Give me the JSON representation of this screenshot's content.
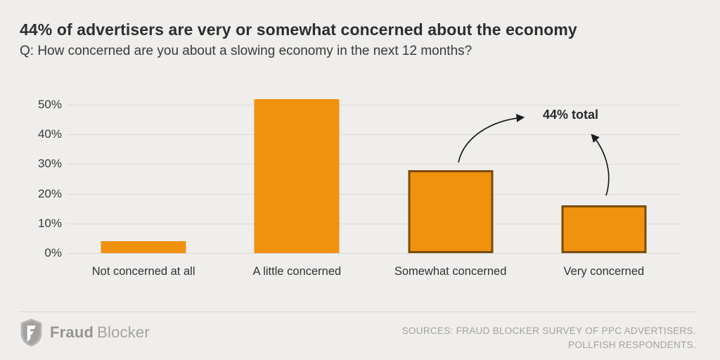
{
  "header": {
    "title": "44% of advertisers are very or somewhat concerned about the economy",
    "subtitle": "Q: How concerned are you about a slowing economy in the next 12 months?"
  },
  "chart_data": {
    "type": "bar",
    "title": "44% of advertisers are very or somewhat concerned about the economy",
    "subtitle": "Q: How concerned are you about a slowing economy in the next 12 months?",
    "categories": [
      "Not concerned at all",
      "A little concerned",
      "Somewhat concerned",
      "Very concerned"
    ],
    "values": [
      4,
      52,
      28,
      16
    ],
    "emphasized": [
      false,
      false,
      true,
      true
    ],
    "yticks": [
      "50%",
      "40%",
      "30%",
      "20%",
      "10%",
      "0%"
    ],
    "ylim": [
      0,
      50
    ],
    "grid": true,
    "legend": "none",
    "bar_color": "#f0920e",
    "emphasis_border_color": "#7a4d05",
    "annotation": {
      "text": "44% total",
      "targets": [
        "Somewhat concerned",
        "Very concerned"
      ]
    }
  },
  "footer": {
    "logo": {
      "icon": "fraud-blocker-shield-icon",
      "bold": "Fraud",
      "light": "Blocker"
    },
    "sources_line1": "SOURCES: FRAUD BLOCKER SURVEY OF PPC ADVERTISERS.",
    "sources_line2": "POLLFISH RESPONDENTS."
  }
}
